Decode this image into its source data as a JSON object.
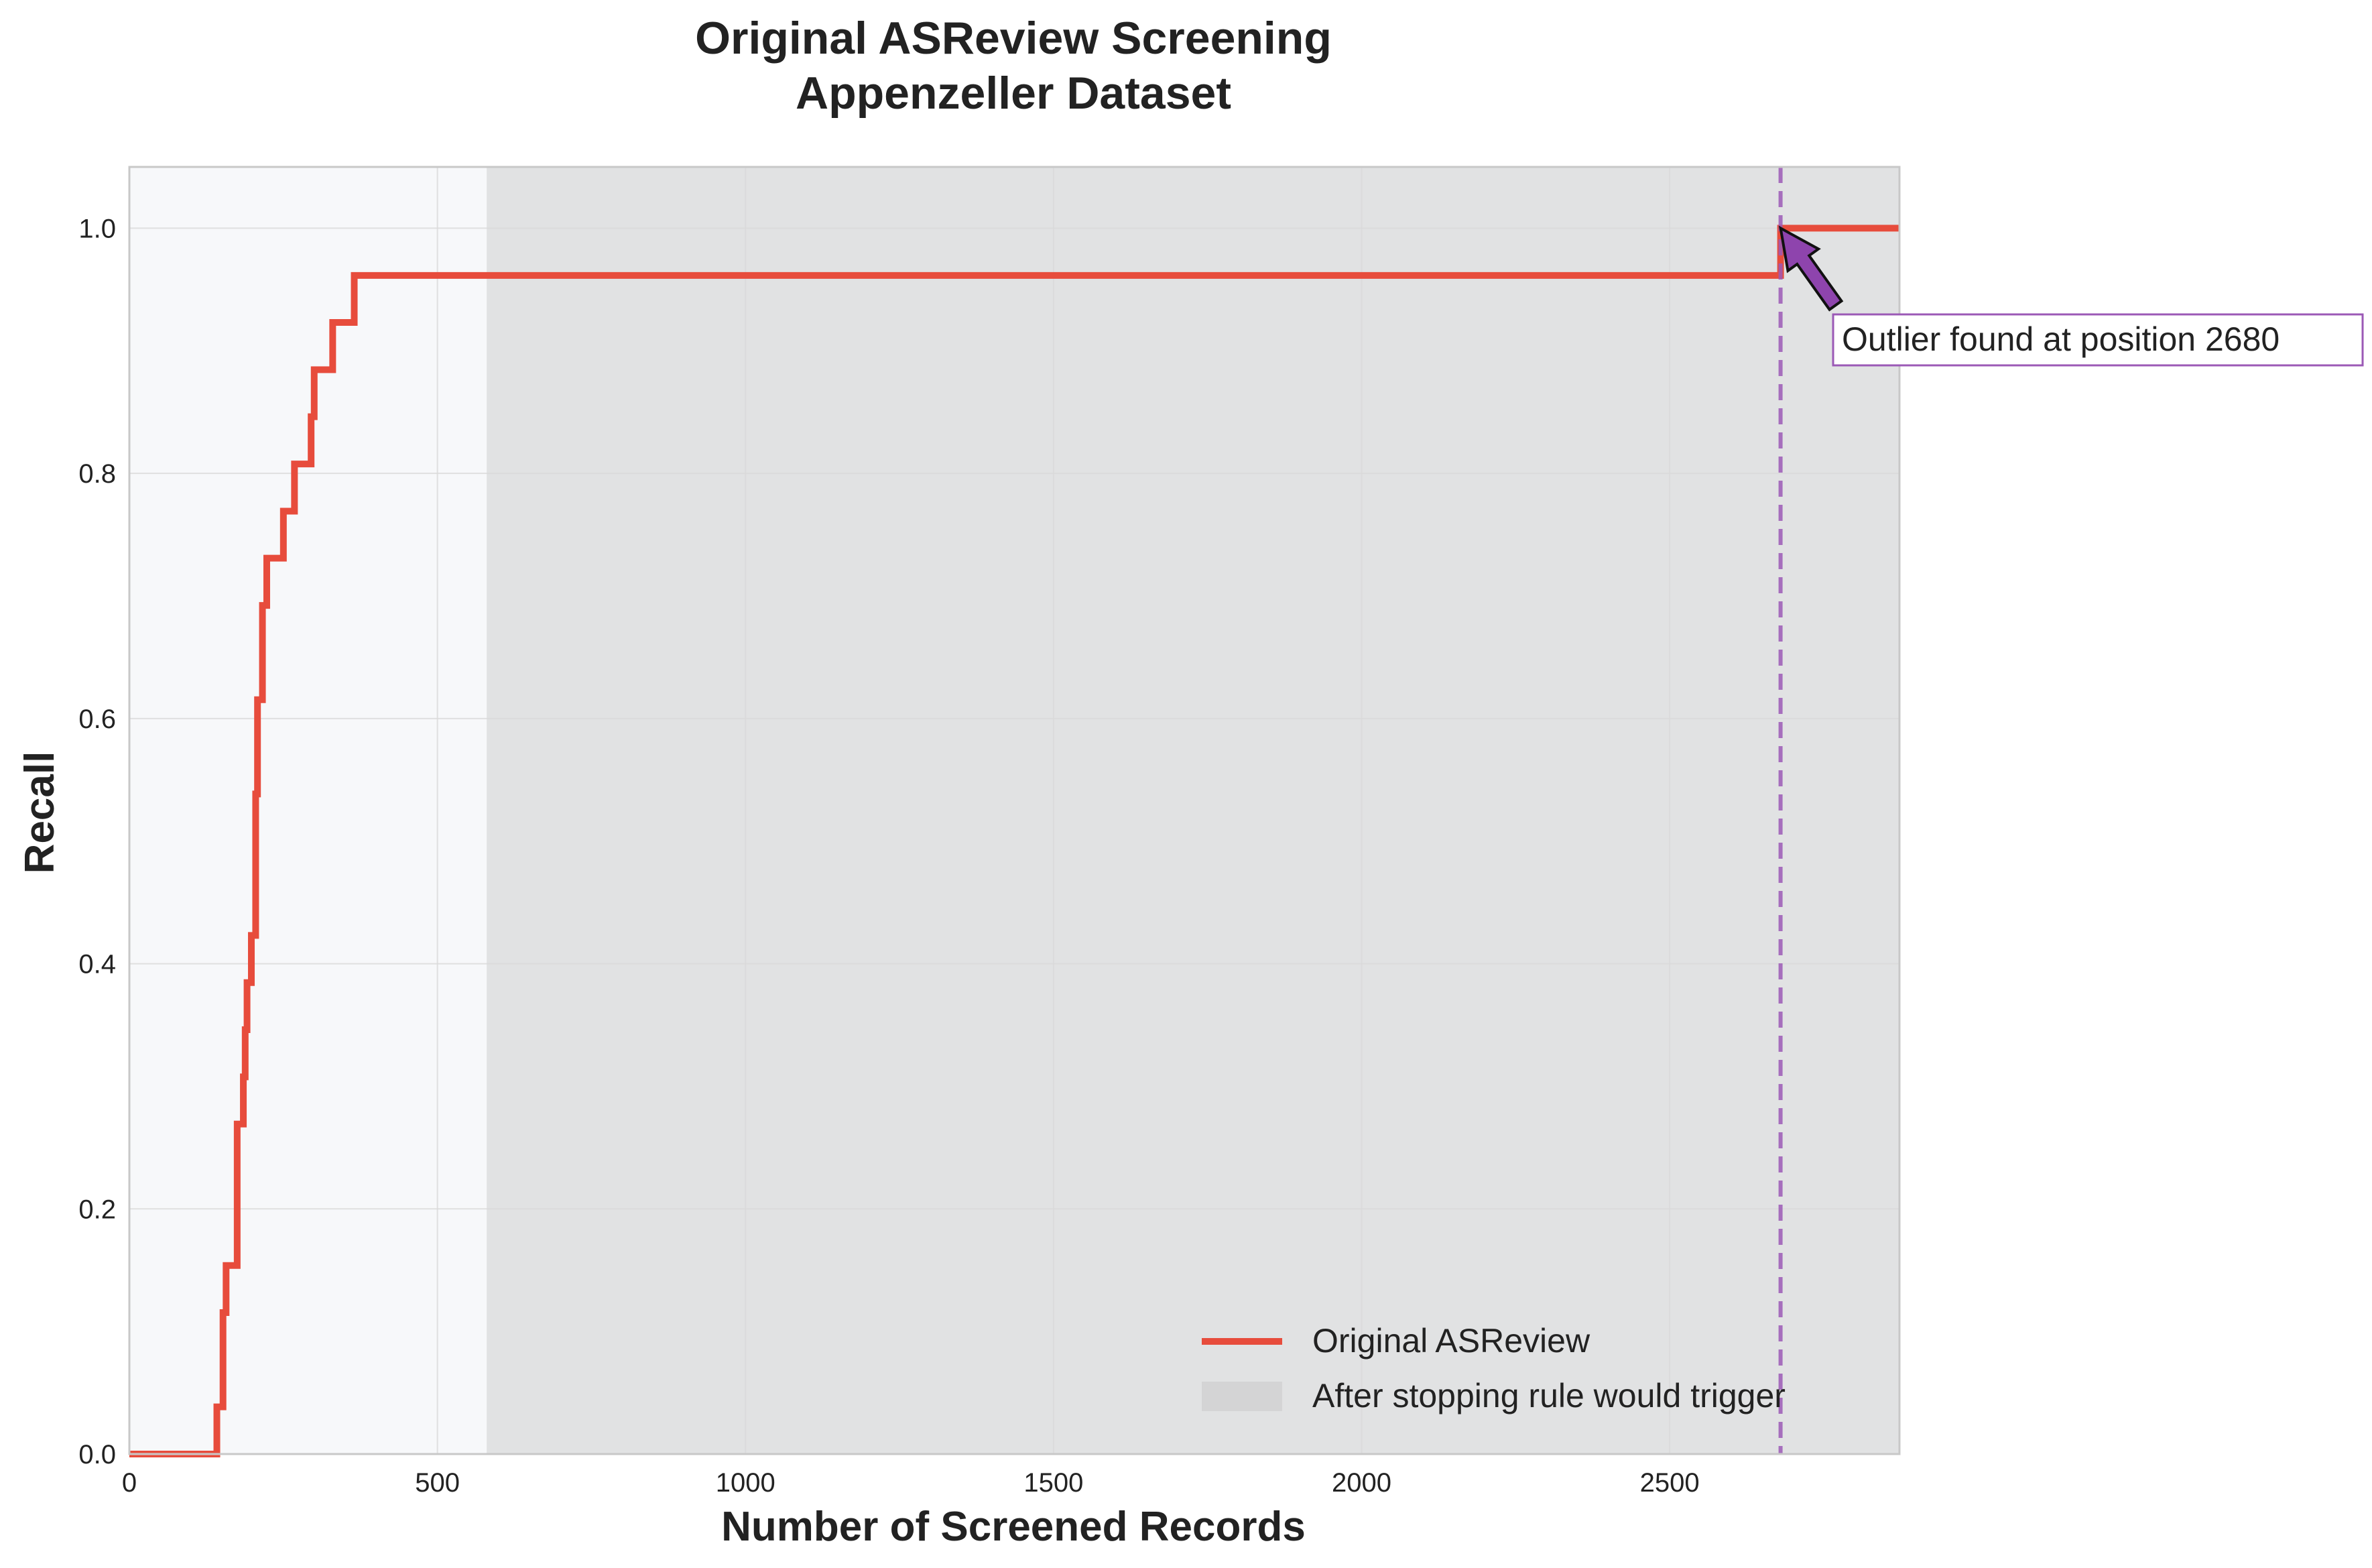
{
  "chart_data": {
    "type": "line",
    "title_line1": "Original ASReview Screening",
    "title_line2": "Appenzeller Dataset",
    "xlabel": "Number of Screened Records",
    "ylabel": "Recall",
    "xlim": [
      0,
      2873
    ],
    "ylim": [
      0,
      1.05
    ],
    "xticks": [
      0,
      500,
      1000,
      1500,
      2000,
      2500
    ],
    "xtick_labels": [
      "0",
      "500",
      "1000",
      "1500",
      "2000",
      "2500"
    ],
    "yticks": [
      0,
      0.2,
      0.4,
      0.6,
      0.8,
      1.0
    ],
    "ytick_labels": [
      "0.0",
      "0.2",
      "0.4",
      "0.6",
      "0.8",
      "1.0"
    ],
    "grid": true,
    "legend_position": "lower-right",
    "series": [
      {
        "name": "Original ASReview",
        "color": "#e74c3c",
        "step": "post",
        "points": [
          [
            0,
            0.0
          ],
          [
            142,
            0.0385
          ],
          [
            152,
            0.1154
          ],
          [
            157,
            0.1538
          ],
          [
            175,
            0.2692
          ],
          [
            185,
            0.3077
          ],
          [
            188,
            0.3462
          ],
          [
            191,
            0.3846
          ],
          [
            198,
            0.4231
          ],
          [
            205,
            0.5385
          ],
          [
            208,
            0.6154
          ],
          [
            216,
            0.6923
          ],
          [
            223,
            0.7308
          ],
          [
            250,
            0.7692
          ],
          [
            268,
            0.8077
          ],
          [
            295,
            0.8462
          ],
          [
            300,
            0.8846
          ],
          [
            330,
            0.9231
          ],
          [
            365,
            0.9615
          ],
          [
            2680,
            1.0
          ],
          [
            2873,
            1.0
          ]
        ]
      }
    ],
    "shaded_region": {
      "label": "After stopping rule would trigger",
      "x_start": 580,
      "x_end": 2873,
      "color": "#cccccc"
    },
    "vertical_line": {
      "x": 2680,
      "color": "#9b59b6",
      "style": "dashed"
    },
    "annotation": {
      "text": "Outlier found at position 2680",
      "target_x": 2680,
      "target_y": 1.0,
      "arrow_color": "#8e44ad",
      "border_color": "#9b59b6"
    }
  }
}
